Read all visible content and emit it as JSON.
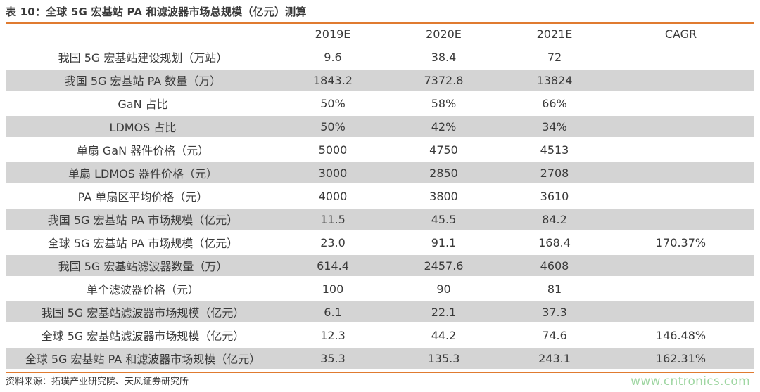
{
  "title": "表 10：全球 5G 宏基站 PA 和滤波器市场总规模（亿元）测算",
  "table": {
    "headers": [
      "",
      "2019E",
      "2020E",
      "2021E",
      "CAGR"
    ],
    "rows": [
      [
        "我国 5G 宏基站建设规划（万站）",
        "9.6",
        "38.4",
        "72",
        ""
      ],
      [
        "我国 5G 宏基站 PA 数量（万）",
        "1843.2",
        "7372.8",
        "13824",
        ""
      ],
      [
        "GaN 占比",
        "50%",
        "58%",
        "66%",
        ""
      ],
      [
        "LDMOS 占比",
        "50%",
        "42%",
        "34%",
        ""
      ],
      [
        "单扇 GaN 器件价格（元）",
        "5000",
        "4750",
        "4513",
        ""
      ],
      [
        "单扇 LDMOS 器件价格（元）",
        "3000",
        "2850",
        "2708",
        ""
      ],
      [
        "PA 单扇区平均价格（元）",
        "4000",
        "3800",
        "3610",
        ""
      ],
      [
        "我国 5G 宏基站 PA 市场规模（亿元）",
        "11.5",
        "45.5",
        "84.2",
        ""
      ],
      [
        "全球 5G 宏基站 PA 市场规模（亿元）",
        "23.0",
        "91.1",
        "168.4",
        "170.37%"
      ],
      [
        "我国 5G 宏基站滤波器数量（万）",
        "614.4",
        "2457.6",
        "4608",
        ""
      ],
      [
        "单个滤波器价格（元）",
        "100",
        "90",
        "81",
        ""
      ],
      [
        "我国 5G 宏基站滤波器市场规模（亿元）",
        "6.1",
        "22.1",
        "37.3",
        ""
      ],
      [
        "全球 5G 宏基站滤波器市场规模（亿元）",
        "12.3",
        "44.2",
        "74.6",
        "146.48%"
      ],
      [
        "全球 5G 宏基站 PA 和滤波器市场规模（亿元）",
        "35.3",
        "135.3",
        "243.1",
        "162.31%"
      ]
    ]
  },
  "footer": "资料来源：拓璞产业研究院、天风证券研究所",
  "watermark": "www.cntronics.com",
  "colors": {
    "accent_rule": "#e07b30",
    "row_shade": "#d4d4d4",
    "watermark": "#9fd6a2"
  }
}
